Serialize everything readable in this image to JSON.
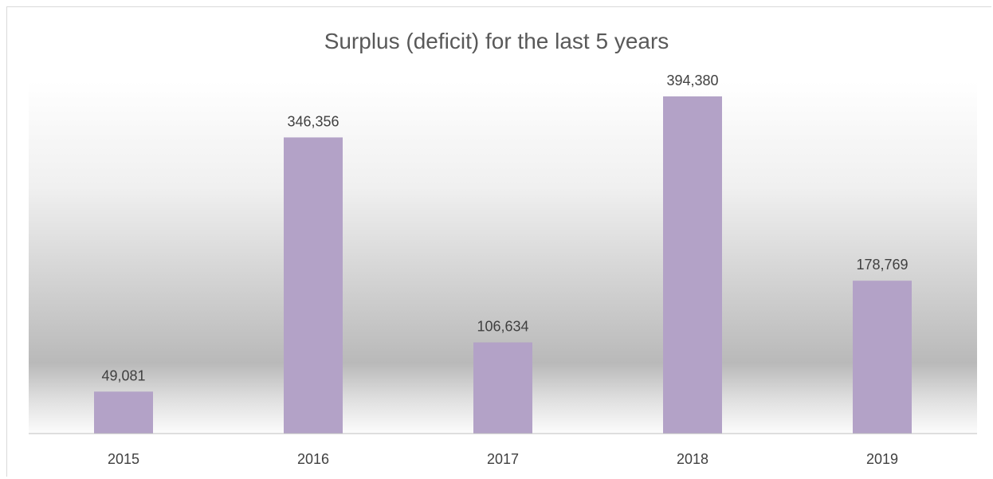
{
  "chart_data": {
    "type": "bar",
    "title": "Surplus (deficit) for the last 5 years",
    "categories": [
      "2015",
      "2016",
      "2017",
      "2018",
      "2019"
    ],
    "values": [
      49081,
      346356,
      106634,
      394380,
      178769
    ],
    "data_labels": [
      "49,081",
      "346,356",
      "106,634",
      "394,380",
      "178,769"
    ],
    "xlabel": "",
    "ylabel": "",
    "ylim": [
      0,
      400000
    ],
    "grid": false,
    "legend": "none",
    "bar_color": "#b3a2c7",
    "label_color": "#404040",
    "title_color": "#595959",
    "axis_color": "#bfbfbf"
  }
}
